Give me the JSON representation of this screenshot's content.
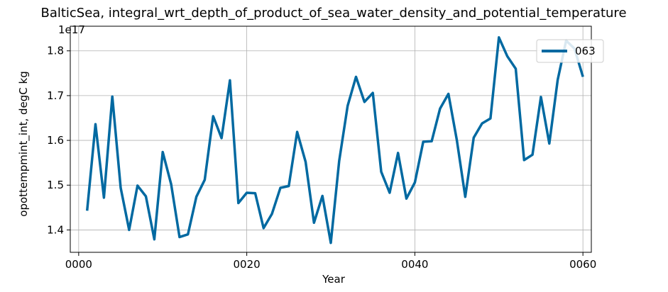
{
  "chart_data": {
    "type": "line",
    "title": "BalticSea, integral_wrt_depth_of_product_of_sea_water_density_and_potential_temperature",
    "xlabel": "Year",
    "ylabel": "opottempmint_int, degC kg",
    "y_offset_label": "1e17",
    "xlim": [
      -1,
      61
    ],
    "ylim": [
      1.35,
      1.855
    ],
    "x_ticks": [
      0,
      20,
      40,
      60
    ],
    "x_tick_labels": [
      "0000",
      "0020",
      "0040",
      "0060"
    ],
    "y_ticks": [
      1.4,
      1.5,
      1.6,
      1.7,
      1.8
    ],
    "y_tick_labels": [
      "1.4",
      "1.5",
      "1.6",
      "1.7",
      "1.8"
    ],
    "grid": true,
    "legend_position": "upper right",
    "series": [
      {
        "name": "063",
        "color": "#0069a1",
        "x": [
          1,
          2,
          3,
          4,
          5,
          6,
          7,
          8,
          9,
          10,
          11,
          12,
          13,
          14,
          15,
          16,
          17,
          18,
          19,
          20,
          21,
          22,
          23,
          24,
          25,
          26,
          27,
          28,
          29,
          30,
          31,
          32,
          33,
          34,
          35,
          36,
          37,
          38,
          39,
          40,
          41,
          42,
          43,
          44,
          45,
          46,
          47,
          48,
          49,
          50,
          51,
          52,
          53,
          54,
          55,
          56,
          57,
          58,
          59,
          60
        ],
        "y": [
          1.443,
          1.636,
          1.472,
          1.698,
          1.494,
          1.4,
          1.499,
          1.475,
          1.379,
          1.574,
          1.502,
          1.384,
          1.39,
          1.474,
          1.512,
          1.654,
          1.605,
          1.734,
          1.46,
          1.483,
          1.482,
          1.404,
          1.436,
          1.494,
          1.498,
          1.619,
          1.552,
          1.416,
          1.476,
          1.371,
          1.554,
          1.677,
          1.742,
          1.686,
          1.706,
          1.53,
          1.483,
          1.572,
          1.47,
          1.506,
          1.597,
          1.598,
          1.671,
          1.704,
          1.6,
          1.474,
          1.606,
          1.638,
          1.649,
          1.83,
          1.788,
          1.76,
          1.556,
          1.568,
          1.697,
          1.593,
          1.735,
          1.823,
          1.805,
          1.742
        ]
      }
    ]
  }
}
